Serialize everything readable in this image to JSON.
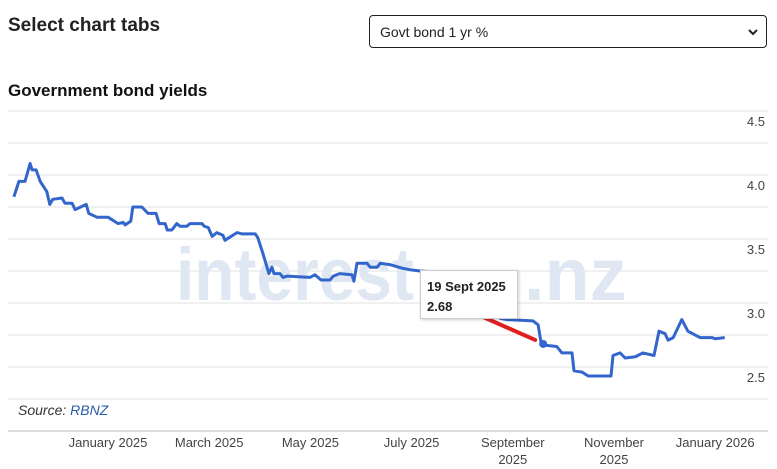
{
  "header": {
    "title": "Select chart tabs"
  },
  "selector": {
    "value": "Govt bond 1 yr %"
  },
  "chart_title": "Government bond yields",
  "watermark": {
    "main": "interest",
    "suffix": ".nz"
  },
  "source": {
    "prefix": "Source: ",
    "name": "RBNZ"
  },
  "tooltip": {
    "date": "19 Sept 2025",
    "value": "2.68"
  },
  "colors": {
    "line": "#3366cc",
    "annotation": "#e02020",
    "grid": "#dddddd"
  },
  "chart_data": {
    "type": "line",
    "title": "Government bond yields",
    "series_name": "Govt bond 1 yr %",
    "x_unit": "months since 1 Jan 2025",
    "ylim": [
      2.0,
      4.5
    ],
    "yticks": [
      {
        "v": 4.5,
        "label": "4.5"
      },
      {
        "v": 4.0,
        "label": "4.0"
      },
      {
        "v": 3.5,
        "label": "3.5"
      },
      {
        "v": 3.0,
        "label": "3.0"
      },
      {
        "v": 2.5,
        "label": "2.5"
      }
    ],
    "xticks": [
      {
        "m": 0,
        "label": [
          "January 2025"
        ]
      },
      {
        "m": 2,
        "label": [
          "March 2025"
        ]
      },
      {
        "m": 4,
        "label": [
          "May 2025"
        ]
      },
      {
        "m": 6,
        "label": [
          "July 2025"
        ]
      },
      {
        "m": 8,
        "label": [
          "September",
          "2025"
        ]
      },
      {
        "m": 10,
        "label": [
          "November",
          "2025"
        ]
      },
      {
        "m": 12,
        "label": [
          "January 2026"
        ]
      }
    ],
    "points": [
      [
        -1.86,
        3.83
      ],
      [
        -1.76,
        3.95
      ],
      [
        -1.64,
        3.95
      ],
      [
        -1.54,
        4.09
      ],
      [
        -1.5,
        4.04
      ],
      [
        -1.42,
        4.04
      ],
      [
        -1.34,
        3.95
      ],
      [
        -1.21,
        3.87
      ],
      [
        -1.15,
        3.77
      ],
      [
        -1.09,
        3.81
      ],
      [
        -0.91,
        3.82
      ],
      [
        -0.85,
        3.78
      ],
      [
        -0.71,
        3.78
      ],
      [
        -0.65,
        3.73
      ],
      [
        -0.43,
        3.77
      ],
      [
        -0.38,
        3.7
      ],
      [
        -0.22,
        3.67
      ],
      [
        0,
        3.67
      ],
      [
        0.2,
        3.62
      ],
      [
        0.3,
        3.63
      ],
      [
        0.34,
        3.61
      ],
      [
        0.45,
        3.64
      ],
      [
        0.49,
        3.75
      ],
      [
        0.67,
        3.75
      ],
      [
        0.79,
        3.7
      ],
      [
        0.95,
        3.7
      ],
      [
        1.01,
        3.62
      ],
      [
        1.13,
        3.62
      ],
      [
        1.17,
        3.57
      ],
      [
        1.26,
        3.57
      ],
      [
        1.36,
        3.62
      ],
      [
        1.42,
        3.6
      ],
      [
        1.56,
        3.6
      ],
      [
        1.62,
        3.62
      ],
      [
        1.86,
        3.62
      ],
      [
        1.9,
        3.6
      ],
      [
        1.98,
        3.59
      ],
      [
        2.06,
        3.52
      ],
      [
        2.15,
        3.55
      ],
      [
        2.27,
        3.53
      ],
      [
        2.31,
        3.49
      ],
      [
        2.55,
        3.55
      ],
      [
        2.65,
        3.54
      ],
      [
        2.91,
        3.54
      ],
      [
        2.96,
        3.51
      ],
      [
        3.06,
        3.39
      ],
      [
        3.18,
        3.23
      ],
      [
        3.24,
        3.28
      ],
      [
        3.28,
        3.23
      ],
      [
        3.4,
        3.23
      ],
      [
        3.46,
        3.2
      ],
      [
        3.54,
        3.21
      ],
      [
        3.99,
        3.2
      ],
      [
        4.09,
        3.22
      ],
      [
        4.21,
        3.18
      ],
      [
        4.39,
        3.18
      ],
      [
        4.45,
        3.21
      ],
      [
        4.58,
        3.23
      ],
      [
        4.82,
        3.22
      ],
      [
        4.86,
        3.17
      ],
      [
        4.92,
        3.31
      ],
      [
        5.12,
        3.31
      ],
      [
        5.18,
        3.28
      ],
      [
        5.32,
        3.28
      ],
      [
        5.38,
        3.31
      ],
      [
        5.57,
        3.3
      ],
      [
        5.83,
        3.27
      ],
      [
        5.97,
        3.26
      ],
      [
        6.17,
        3.25
      ],
      [
        6.56,
        3.24
      ],
      [
        7.15,
        3.15
      ],
      [
        7.55,
        3.05
      ],
      [
        7.75,
        2.88
      ],
      [
        7.89,
        2.87
      ],
      [
        8.4,
        2.86
      ],
      [
        8.5,
        2.83
      ],
      [
        8.56,
        2.69
      ],
      [
        8.6,
        2.68
      ],
      [
        8.64,
        2.67
      ],
      [
        8.87,
        2.66
      ],
      [
        8.97,
        2.61
      ],
      [
        9.17,
        2.61
      ],
      [
        9.21,
        2.47
      ],
      [
        9.37,
        2.46
      ],
      [
        9.49,
        2.43
      ],
      [
        9.94,
        2.43
      ],
      [
        9.98,
        2.59
      ],
      [
        10.12,
        2.61
      ],
      [
        10.22,
        2.57
      ],
      [
        10.42,
        2.58
      ],
      [
        10.57,
        2.61
      ],
      [
        10.79,
        2.59
      ],
      [
        10.89,
        2.78
      ],
      [
        11.01,
        2.76
      ],
      [
        11.07,
        2.71
      ],
      [
        11.17,
        2.73
      ],
      [
        11.34,
        2.87
      ],
      [
        11.46,
        2.78
      ],
      [
        11.7,
        2.73
      ],
      [
        11.94,
        2.73
      ],
      [
        12.0,
        2.72
      ],
      [
        12.19,
        2.73
      ]
    ],
    "highlight": {
      "m": 8.6,
      "v": 2.68
    },
    "grid": true,
    "legend": "none"
  }
}
